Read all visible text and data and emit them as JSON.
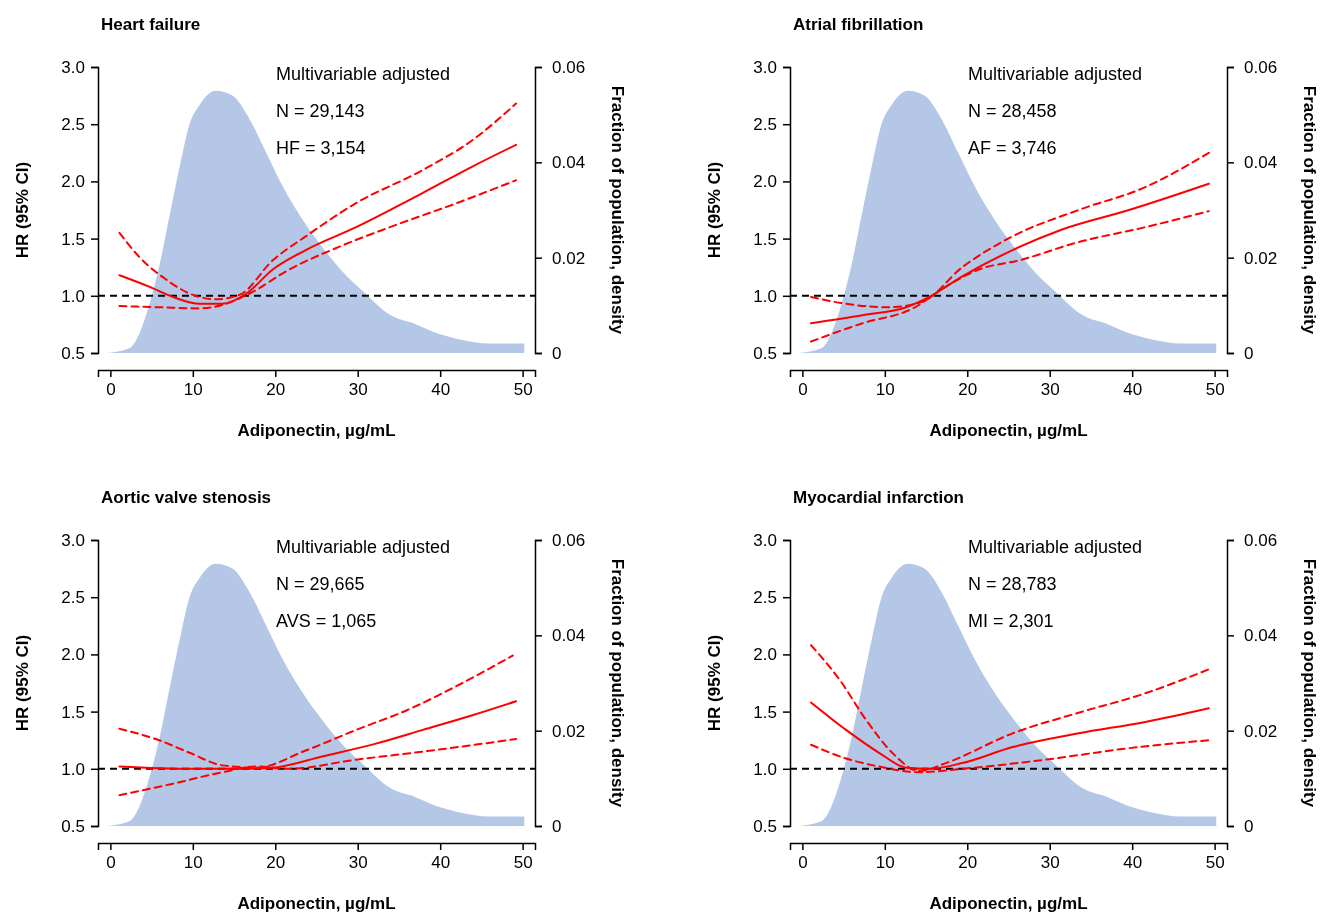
{
  "chart_data": [
    {
      "type": "line",
      "title": "Heart failure",
      "xlabel": "Adiponectin, µg/mL",
      "ylabel": "HR (95% CI)",
      "y2label": "Fraction of population, density",
      "annotations": [
        "Multivariable adjusted",
        "N = 29,143",
        "HF = 3,154"
      ],
      "xlim": [
        -1.5,
        51.5
      ],
      "xticks": [
        0,
        10,
        20,
        30,
        40,
        50
      ],
      "ylim": [
        0.5,
        3
      ],
      "yticks": [
        0.5,
        {
          "value": 1,
          "label": "1.0"
        },
        1.5,
        {
          "value": 2,
          "label": "2.0"
        },
        2.5,
        {
          "value": 3,
          "label": "3.0"
        }
      ],
      "y2lim": [
        0,
        0.06
      ],
      "y2ticks": [
        0,
        0.02,
        0.04,
        0.06
      ],
      "ref_lines": [
        {
          "axis": "y",
          "value": 1,
          "color": "#000000",
          "line_style": "dashed"
        }
      ],
      "series": [
        {
          "type": "area",
          "axis": "y2",
          "color": "#b4c7e7",
          "x": [
            -0.5,
            2.3,
            3.5,
            4.7,
            5.9,
            7.2,
            8.4,
            9.6,
            10.8,
            12.8,
            14.8,
            16.9,
            18.9,
            20.9,
            23.3,
            25.8,
            28.2,
            30.6,
            33.9,
            37.1,
            39.9,
            42,
            46,
            50.2
          ],
          "values": [
            0,
            0.001,
            0.004,
            0.01,
            0.018,
            0.029,
            0.039,
            0.048,
            0.052,
            0.055,
            0.054,
            0.049,
            0.042,
            0.035,
            0.028,
            0.022,
            0.017,
            0.013,
            0.008,
            0.006,
            0.004,
            0.003,
            0.002,
            0.002
          ]
        },
        {
          "color": "#ff0000",
          "line_style": "solid",
          "x": [
            1.1,
            4.7,
            7.6,
            10.8,
            13.6,
            16.5,
            19.7,
            23.7,
            29.8,
            37.9,
            43.9,
            49.2
          ],
          "values": [
            1.18,
            1.08,
            0.99,
            0.93,
            0.93,
            1.02,
            1.23,
            1.4,
            1.6,
            1.9,
            2.13,
            2.32
          ]
        },
        {
          "color": "#ff0000",
          "line_style": "dashed",
          "x": [
            1.1,
            3.5,
            6.8,
            9.6,
            12.8,
            15.7,
            19.7,
            23.7,
            29.8,
            37.9,
            43.9,
            49.2
          ],
          "values": [
            1.55,
            1.34,
            1.14,
            1.02,
            0.97,
            1.01,
            1.31,
            1.52,
            1.81,
            2.1,
            2.36,
            2.68
          ]
        },
        {
          "color": "#ff0000",
          "line_style": "dashed",
          "x": [
            1.1,
            5.9,
            10.8,
            13.6,
            16.9,
            21.7,
            27.8,
            33.9,
            42,
            49.2
          ],
          "values": [
            0.91,
            0.9,
            0.89,
            0.92,
            1.02,
            1.23,
            1.43,
            1.6,
            1.81,
            2.01
          ]
        }
      ]
    },
    {
      "type": "line",
      "title": "Atrial fibrillation",
      "xlabel": "Adiponectin, µg/mL",
      "ylabel": "HR (95% CI)",
      "y2label": "Fraction of population, density",
      "annotations": [
        "Multivariable adjusted",
        "N = 28,458",
        "AF = 3,746"
      ],
      "xlim": [
        -1.5,
        51.5
      ],
      "xticks": [
        0,
        10,
        20,
        30,
        40,
        50
      ],
      "ylim": [
        0.5,
        3
      ],
      "yticks": [
        0.5,
        {
          "value": 1,
          "label": "1.0"
        },
        1.5,
        {
          "value": 2,
          "label": "2.0"
        },
        2.5,
        {
          "value": 3,
          "label": "3.0"
        }
      ],
      "y2lim": [
        0,
        0.06
      ],
      "y2ticks": [
        0,
        0.02,
        0.04,
        0.06
      ],
      "ref_lines": [
        {
          "axis": "y",
          "value": 1,
          "color": "#000000",
          "line_style": "dashed"
        }
      ],
      "series": [
        {
          "type": "area",
          "axis": "y2",
          "color": "#b4c7e7",
          "x": [
            -0.5,
            2.3,
            3.5,
            4.7,
            5.9,
            7.2,
            8.4,
            9.6,
            10.8,
            12.8,
            14.8,
            16.9,
            18.9,
            20.9,
            23.3,
            25.8,
            28.2,
            30.6,
            33.9,
            37.1,
            39.9,
            42,
            46,
            50.2
          ],
          "values": [
            0,
            0.001,
            0.004,
            0.01,
            0.018,
            0.029,
            0.039,
            0.048,
            0.052,
            0.055,
            0.054,
            0.049,
            0.042,
            0.035,
            0.028,
            0.022,
            0.017,
            0.013,
            0.008,
            0.006,
            0.004,
            0.003,
            0.002,
            0.002
          ]
        },
        {
          "color": "#ff0000",
          "line_style": "solid",
          "x": [
            1.05,
            7.3,
            12.6,
            15.4,
            19.4,
            25.5,
            31.5,
            39.6,
            49.3
          ],
          "values": [
            0.76,
            0.83,
            0.9,
            0.99,
            1.17,
            1.4,
            1.58,
            1.75,
            1.98
          ]
        },
        {
          "color": "#ff0000",
          "line_style": "dashed",
          "x": [
            1.05,
            5.3,
            10.5,
            14.6,
            19.4,
            25.5,
            33.5,
            41.6,
            49.3
          ],
          "values": [
            0.99,
            0.93,
            0.9,
            0.95,
            1.25,
            1.52,
            1.75,
            1.95,
            2.25
          ]
        },
        {
          "color": "#ff0000",
          "line_style": "dashed",
          "x": [
            1.05,
            7.3,
            13.4,
            17.4,
            21.4,
            26.3,
            33.5,
            41.6,
            49.3
          ],
          "values": [
            0.6,
            0.76,
            0.89,
            1.08,
            1.23,
            1.31,
            1.47,
            1.6,
            1.74
          ]
        }
      ]
    },
    {
      "type": "line",
      "title": "Aortic valve stenosis",
      "xlabel": "Adiponectin, µg/mL",
      "ylabel": "HR (95% CI)",
      "y2label": "Fraction of population, density",
      "annotations": [
        "Multivariable adjusted",
        "N = 29,665",
        "AVS = 1,065"
      ],
      "xlim": [
        -1.5,
        51.5
      ],
      "xticks": [
        0,
        10,
        20,
        30,
        40,
        50
      ],
      "ylim": [
        0.5,
        3
      ],
      "yticks": [
        0.5,
        {
          "value": 1,
          "label": "1.0"
        },
        1.5,
        {
          "value": 2,
          "label": "2.0"
        },
        2.5,
        {
          "value": 3,
          "label": "3.0"
        }
      ],
      "y2lim": [
        0,
        0.06
      ],
      "y2ticks": [
        0,
        0.02,
        0.04,
        0.06
      ],
      "ref_lines": [
        {
          "axis": "y",
          "value": 1,
          "color": "#000000",
          "line_style": "dashed"
        }
      ],
      "series": [
        {
          "type": "area",
          "axis": "y2",
          "color": "#b4c7e7",
          "x": [
            -0.5,
            2.3,
            3.5,
            4.7,
            5.9,
            7.2,
            8.4,
            9.6,
            10.8,
            12.8,
            14.8,
            16.9,
            18.9,
            20.9,
            23.3,
            25.8,
            28.2,
            30.6,
            33.9,
            37.1,
            39.9,
            42,
            46,
            50.2
          ],
          "values": [
            0,
            0.001,
            0.004,
            0.01,
            0.018,
            0.029,
            0.039,
            0.048,
            0.052,
            0.055,
            0.054,
            0.049,
            0.042,
            0.035,
            0.028,
            0.022,
            0.017,
            0.013,
            0.008,
            0.006,
            0.004,
            0.003,
            0.002,
            0.002
          ]
        },
        {
          "color": "#ff0000",
          "line_style": "solid",
          "x": [
            1.1,
            9.6,
            15.7,
            19.7,
            25.8,
            32.2,
            37.9,
            44,
            49.2
          ],
          "values": [
            1.02,
            1,
            1,
            1.01,
            1.11,
            1.22,
            1.34,
            1.47,
            1.59
          ]
        },
        {
          "color": "#ff0000",
          "line_style": "dashed",
          "x": [
            1.1,
            5.9,
            9.6,
            13.6,
            17.7,
            23.7,
            29.8,
            35.9,
            41.9,
            48.8
          ],
          "values": [
            1.35,
            1.25,
            1.14,
            1.03,
            1.01,
            1.16,
            1.34,
            1.51,
            1.72,
            1.99
          ]
        },
        {
          "color": "#ff0000",
          "line_style": "dashed",
          "x": [
            1.1,
            7.6,
            13.6,
            17.7,
            21.7,
            29.8,
            37.9,
            49.2
          ],
          "values": [
            0.77,
            0.87,
            0.97,
            1.02,
            1,
            1.08,
            1.15,
            1.26
          ]
        }
      ]
    },
    {
      "type": "line",
      "title": "Myocardial infarction",
      "xlabel": "Adiponectin, µg/mL",
      "ylabel": "HR (95% CI)",
      "y2label": "Fraction of population, density",
      "annotations": [
        "Multivariable adjusted",
        "N = 28,783",
        "MI = 2,301"
      ],
      "xlim": [
        -1.5,
        51.5
      ],
      "xticks": [
        0,
        10,
        20,
        30,
        40,
        50
      ],
      "ylim": [
        0.5,
        3
      ],
      "yticks": [
        0.5,
        {
          "value": 1,
          "label": "1.0"
        },
        1.5,
        {
          "value": 2,
          "label": "2.0"
        },
        2.5,
        {
          "value": 3,
          "label": "3.0"
        }
      ],
      "y2lim": [
        0,
        0.06
      ],
      "y2ticks": [
        0,
        0.02,
        0.04,
        0.06
      ],
      "ref_lines": [
        {
          "axis": "y",
          "value": 1,
          "color": "#000000",
          "line_style": "dashed"
        }
      ],
      "series": [
        {
          "type": "area",
          "axis": "y2",
          "color": "#b4c7e7",
          "x": [
            -0.5,
            2.3,
            3.5,
            4.7,
            5.9,
            7.2,
            8.4,
            9.6,
            10.8,
            12.8,
            14.8,
            16.9,
            18.9,
            20.9,
            23.3,
            25.8,
            28.2,
            30.6,
            33.9,
            37.1,
            39.9,
            42,
            46,
            50.2
          ],
          "values": [
            0,
            0.001,
            0.004,
            0.01,
            0.018,
            0.029,
            0.039,
            0.048,
            0.052,
            0.055,
            0.054,
            0.049,
            0.042,
            0.035,
            0.028,
            0.022,
            0.017,
            0.013,
            0.008,
            0.006,
            0.004,
            0.003,
            0.002,
            0.002
          ]
        },
        {
          "color": "#ff0000",
          "line_style": "solid",
          "x": [
            1.05,
            5.3,
            9.3,
            12.6,
            15.4,
            19.4,
            25.5,
            33.5,
            41.6,
            49.3
          ],
          "values": [
            1.58,
            1.34,
            1.14,
            1.01,
            1,
            1.05,
            1.19,
            1.31,
            1.41,
            1.53
          ]
        },
        {
          "color": "#ff0000",
          "line_style": "dashed",
          "x": [
            1.05,
            4.5,
            7.7,
            10.9,
            14.2,
            17.4,
            25.5,
            33.5,
            41.6,
            49.3
          ],
          "values": [
            2.08,
            1.78,
            1.43,
            1.14,
            0.98,
            1.05,
            1.31,
            1.49,
            1.66,
            1.87
          ]
        },
        {
          "color": "#ff0000",
          "line_style": "dashed",
          "x": [
            1.05,
            5.3,
            9.3,
            14.2,
            19.4,
            29.5,
            39.6,
            49.3
          ],
          "values": [
            1.21,
            1.09,
            1.02,
            0.97,
            1,
            1.08,
            1.18,
            1.25
          ]
        }
      ]
    }
  ]
}
